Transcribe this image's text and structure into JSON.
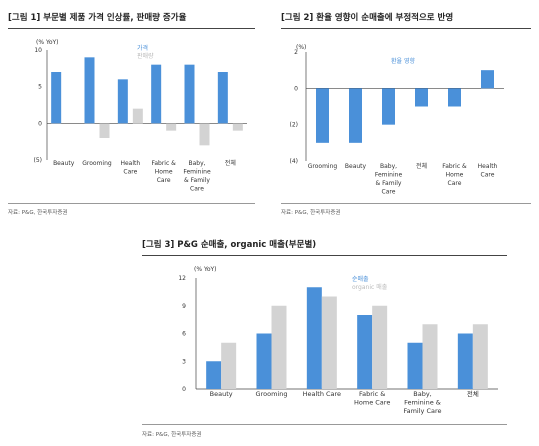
{
  "figures": [
    {
      "title": "[그림 1] 부문별 제품 가격 인상률, 판매량 증가율",
      "source": "자료: P&G, 한국투자증권"
    },
    {
      "title": "[그림 2] 환율 영향이 순매출에 부정적으로 반영",
      "source": "자료: P&G, 한국투자증권"
    },
    {
      "title": "[그림 3] P&G 순매출, organic 매출(부문별)",
      "source": "자료: P&G, 한국투자증권"
    }
  ],
  "chart_data": [
    {
      "type": "bar",
      "ylabel": "(% YoY)",
      "ylim": [
        -5,
        10
      ],
      "yticks": [
        "10",
        "5",
        "0",
        "(5)"
      ],
      "categories": [
        "Beauty",
        "Grooming",
        "Health Care",
        "Fabric & Home Care",
        "Baby, Feminine & Family Care",
        "전체"
      ],
      "category_lines": [
        [
          "Beauty"
        ],
        [
          "Grooming"
        ],
        [
          "Health",
          "Care"
        ],
        [
          "Fabric &",
          "Home",
          "Care"
        ],
        [
          "Baby,",
          "Feminine",
          "& Family",
          "Care"
        ],
        [
          "전체"
        ]
      ],
      "series": [
        {
          "name": "가격",
          "color": "#4a90d9",
          "values": [
            7,
            9,
            6,
            8,
            8,
            7
          ]
        },
        {
          "name": "판매량",
          "color": "#d3d3d3",
          "values": [
            0,
            -2,
            2,
            -1,
            -3,
            -1
          ]
        }
      ]
    },
    {
      "type": "bar",
      "ylabel": "(%)",
      "ylim": [
        -4,
        2
      ],
      "yticks": [
        "2",
        "0",
        "(2)",
        "(4)"
      ],
      "categories": [
        "Grooming",
        "Beauty",
        "Baby, Feminine & Family Care",
        "전체",
        "Fabric & Home Care",
        "Health Care"
      ],
      "category_lines": [
        [
          "Grooming"
        ],
        [
          "Beauty"
        ],
        [
          "Baby,",
          "Feminine",
          "& Family",
          "Care"
        ],
        [
          "전체"
        ],
        [
          "Fabric &",
          "Home",
          "Care"
        ],
        [
          "Health",
          "Care"
        ]
      ],
      "series": [
        {
          "name": "환율 영향",
          "color": "#4a90d9",
          "values": [
            -3,
            -3,
            -2,
            -1,
            -1,
            1
          ]
        }
      ]
    },
    {
      "type": "bar",
      "ylabel": "(% YoY)",
      "ylim": [
        0,
        12
      ],
      "yticks": [
        "12",
        "9",
        "6",
        "3",
        "0"
      ],
      "categories": [
        "Beauty",
        "Grooming",
        "Health Care",
        "Fabric & Home Care",
        "Baby, Feminine & Family Care",
        "전체"
      ],
      "category_lines": [
        [
          "Beauty"
        ],
        [
          "Grooming"
        ],
        [
          "Health Care"
        ],
        [
          "Fabric &",
          "Home Care"
        ],
        [
          "Baby,",
          "Feminine &",
          "Family Care"
        ],
        [
          "전체"
        ]
      ],
      "series": [
        {
          "name": "순매출",
          "color": "#4a90d9",
          "values": [
            3,
            6,
            11,
            8,
            5,
            6
          ]
        },
        {
          "name": "organic 매출",
          "color": "#d3d3d3",
          "values": [
            5,
            9,
            10,
            9,
            7,
            7
          ]
        }
      ]
    }
  ]
}
